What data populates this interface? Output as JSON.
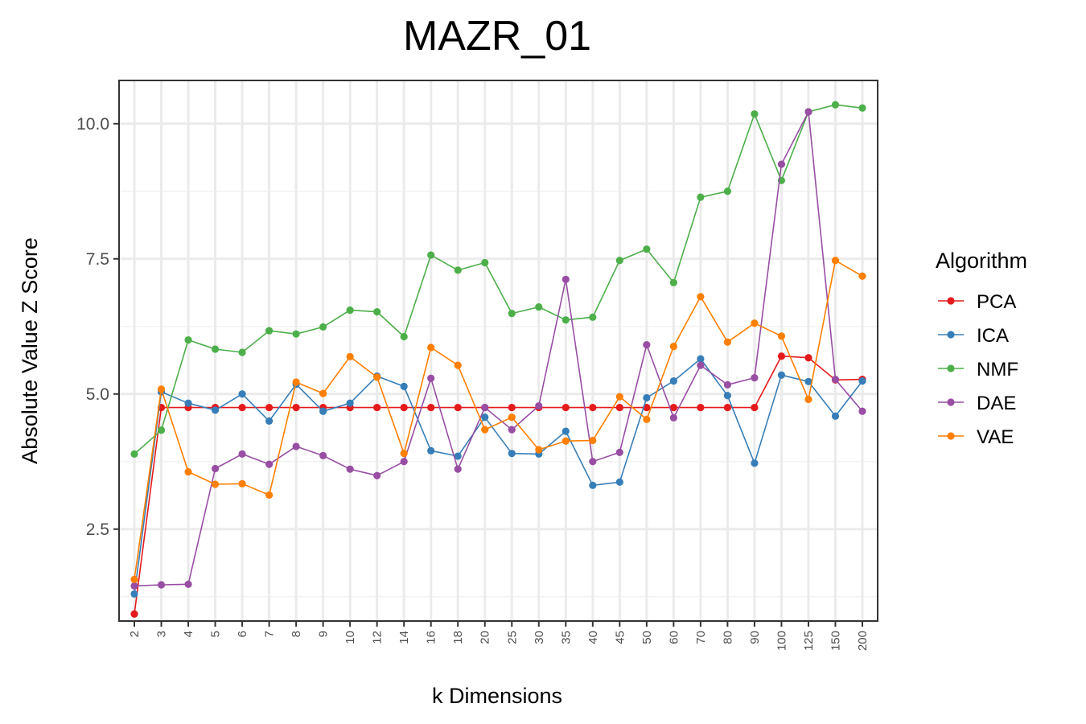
{
  "chart_data": {
    "type": "line",
    "title": "MAZR_01",
    "xlabel": "k Dimensions",
    "ylabel": "Absolute Value Z Score",
    "categories": [
      "2",
      "3",
      "4",
      "5",
      "6",
      "7",
      "8",
      "9",
      "10",
      "12",
      "14",
      "16",
      "18",
      "20",
      "25",
      "30",
      "35",
      "40",
      "45",
      "50",
      "60",
      "70",
      "80",
      "90",
      "100",
      "125",
      "150",
      "200"
    ],
    "ylim": [
      0.8,
      10.8
    ],
    "yticks": [
      2.5,
      5.0,
      7.5,
      10.0
    ],
    "ytick_labels": [
      "2.5",
      "5.0",
      "7.5",
      "10.0"
    ],
    "grid": true,
    "legend": {
      "title": "Algorithm",
      "position": "right"
    },
    "series": [
      {
        "name": "PCA",
        "color": "#e41a1c",
        "values": [
          0.93,
          4.75,
          4.75,
          4.75,
          4.75,
          4.75,
          4.75,
          4.75,
          4.75,
          4.75,
          4.75,
          4.75,
          4.75,
          4.75,
          4.75,
          4.75,
          4.75,
          4.75,
          4.75,
          4.75,
          4.75,
          4.75,
          4.75,
          4.75,
          5.7,
          5.67,
          5.26,
          5.27
        ]
      },
      {
        "name": "ICA",
        "color": "#377eb8",
        "values": [
          1.3,
          5.04,
          4.83,
          4.7,
          5.0,
          4.5,
          5.18,
          4.68,
          4.83,
          5.33,
          5.14,
          3.95,
          3.85,
          4.57,
          3.9,
          3.89,
          4.31,
          3.31,
          3.37,
          4.93,
          5.24,
          5.65,
          4.97,
          3.72,
          5.35,
          5.23,
          4.59,
          5.24
        ]
      },
      {
        "name": "NMF",
        "color": "#4daf4a",
        "values": [
          3.89,
          4.33,
          6.0,
          5.83,
          5.77,
          6.17,
          6.11,
          6.24,
          6.55,
          6.52,
          6.06,
          7.57,
          7.29,
          7.43,
          6.49,
          6.61,
          6.37,
          6.42,
          7.47,
          7.68,
          7.06,
          8.64,
          8.75,
          10.18,
          8.95,
          10.22,
          10.35,
          10.29
        ]
      },
      {
        "name": "DAE",
        "color": "#984ea3",
        "values": [
          1.45,
          1.47,
          1.48,
          3.62,
          3.89,
          3.7,
          4.03,
          3.86,
          3.61,
          3.49,
          3.75,
          5.29,
          3.61,
          4.75,
          4.34,
          4.78,
          7.12,
          3.75,
          3.92,
          5.91,
          4.56,
          5.53,
          5.17,
          5.3,
          9.25,
          10.22,
          5.27,
          4.68
        ]
      },
      {
        "name": "VAE",
        "color": "#ff7f00",
        "values": [
          1.57,
          5.09,
          3.56,
          3.33,
          3.34,
          3.13,
          5.22,
          5.01,
          5.69,
          5.31,
          3.9,
          5.86,
          5.53,
          4.34,
          4.57,
          3.97,
          4.13,
          4.14,
          4.95,
          4.53,
          5.88,
          6.8,
          5.96,
          6.31,
          6.07,
          4.9,
          7.47,
          7.18
        ]
      }
    ]
  }
}
